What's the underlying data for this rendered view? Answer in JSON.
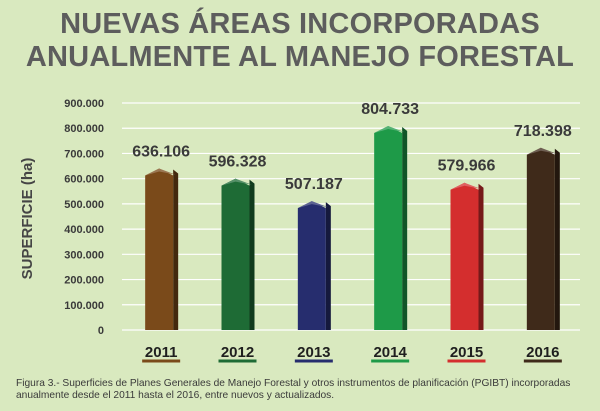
{
  "title": {
    "line1": "NUEVAS ÁREAS INCORPORADAS",
    "line2": "ANUALMENTE AL MANEJO FORESTAL"
  },
  "caption": "Figura 3.- Superficies de Planes Generales de Manejo Forestal y otros instrumentos de planificación (PGIBT) incorporadas anualmente desde el 2011 hasta el 2016, entre nuevos y actualizados.",
  "colors": {
    "background": "#d9e9bf",
    "title": "#5d5d5d",
    "grid": "#ffffff",
    "axis_text": "#3a3a3a"
  },
  "chart_data": {
    "type": "bar",
    "categories": [
      "2011",
      "2012",
      "2013",
      "2014",
      "2015",
      "2016"
    ],
    "values": [
      636106,
      596328,
      507187,
      804733,
      579966,
      718398
    ],
    "data_labels": [
      "636.106",
      "596.328",
      "507.187",
      "804.733",
      "579.966",
      "718.398"
    ],
    "bar_colors": [
      "#7a4a1a",
      "#1e6b35",
      "#262d6e",
      "#1e9a48",
      "#d42e2e",
      "#3f2a1a"
    ],
    "ylabel": "SUPERFICIE (ha)",
    "ylim": [
      0,
      900000
    ],
    "yticks": [
      0,
      100000,
      200000,
      300000,
      400000,
      500000,
      600000,
      700000,
      800000,
      900000
    ],
    "ytick_labels": [
      "0",
      "100.000",
      "200.000",
      "300.000",
      "400.000",
      "500.000",
      "600.000",
      "700.000",
      "800.000",
      "900.000"
    ],
    "grid": true
  }
}
